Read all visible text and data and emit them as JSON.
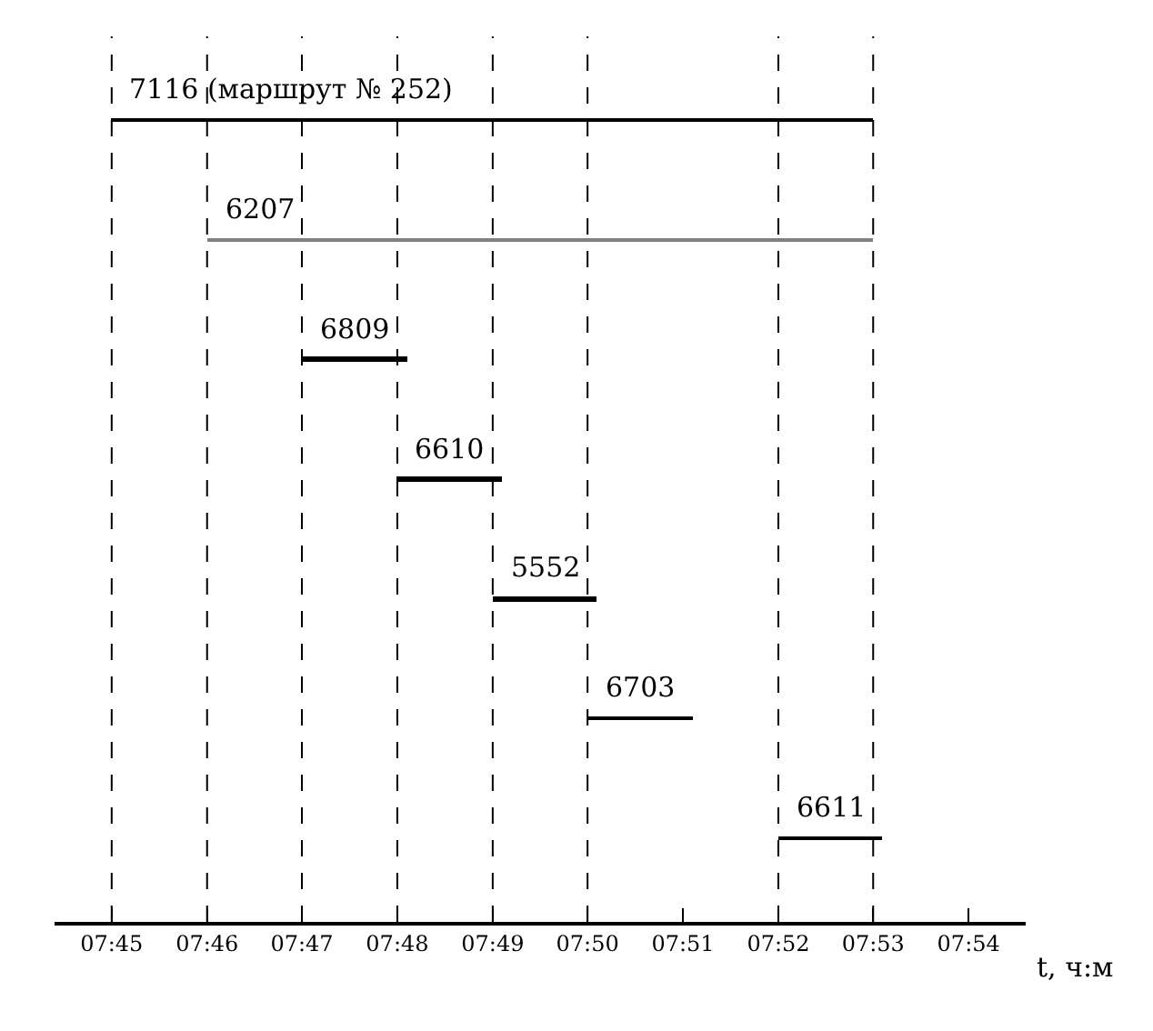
{
  "chart_data": {
    "type": "bar",
    "orientation": "horizontal",
    "xlabel": "t, ч:м",
    "categories": [
      "7116 (маршрут № 252)",
      "6207",
      "6809",
      "6610",
      "5552",
      "6703",
      "6611"
    ],
    "base": [
      7.75,
      7.7667,
      7.7833,
      7.8,
      7.8167,
      7.8333,
      7.8667
    ],
    "values": [
      0.1333,
      0.1167,
      0.0183,
      0.0183,
      0.0183,
      0.0183,
      0.0183
    ],
    "colors": [
      "#000000",
      "#808080",
      "#000000",
      "#000000",
      "#000000",
      "#000000",
      "#000000"
    ],
    "xlim": [
      7.74,
      7.91
    ],
    "xticks": [
      {
        "value": 7.75,
        "label": "07:45"
      },
      {
        "value": 7.7667,
        "label": "07:46"
      },
      {
        "value": 7.7833,
        "label": "07:47"
      },
      {
        "value": 7.8,
        "label": "07:48"
      },
      {
        "value": 7.8167,
        "label": "07:49"
      },
      {
        "value": 7.8333,
        "label": "07:50"
      },
      {
        "value": 7.85,
        "label": "07:51"
      },
      {
        "value": 7.8667,
        "label": "07:52"
      },
      {
        "value": 7.8833,
        "label": "07:53"
      },
      {
        "value": 7.9,
        "label": "07:54"
      }
    ],
    "ref_lines": [
      {
        "axis": "x",
        "value": 7.75,
        "color": "#000000",
        "line_style": "dashed"
      },
      {
        "axis": "x",
        "value": 7.7667,
        "color": "#000000",
        "line_style": "dashed"
      },
      {
        "axis": "x",
        "value": 7.7833,
        "color": "#000000",
        "line_style": "dashed"
      },
      {
        "axis": "x",
        "value": 7.8,
        "color": "#000000",
        "line_style": "dashed"
      },
      {
        "axis": "x",
        "value": 7.8167,
        "color": "#000000",
        "line_style": "dashed"
      },
      {
        "axis": "x",
        "value": 7.8333,
        "color": "#000000",
        "line_style": "dashed"
      },
      {
        "axis": "x",
        "value": 7.8667,
        "color": "#000000",
        "line_style": "dashed"
      },
      {
        "axis": "x",
        "value": 7.8833,
        "color": "#000000",
        "line_style": "dashed"
      }
    ],
    "tick_labels": "x"
  }
}
